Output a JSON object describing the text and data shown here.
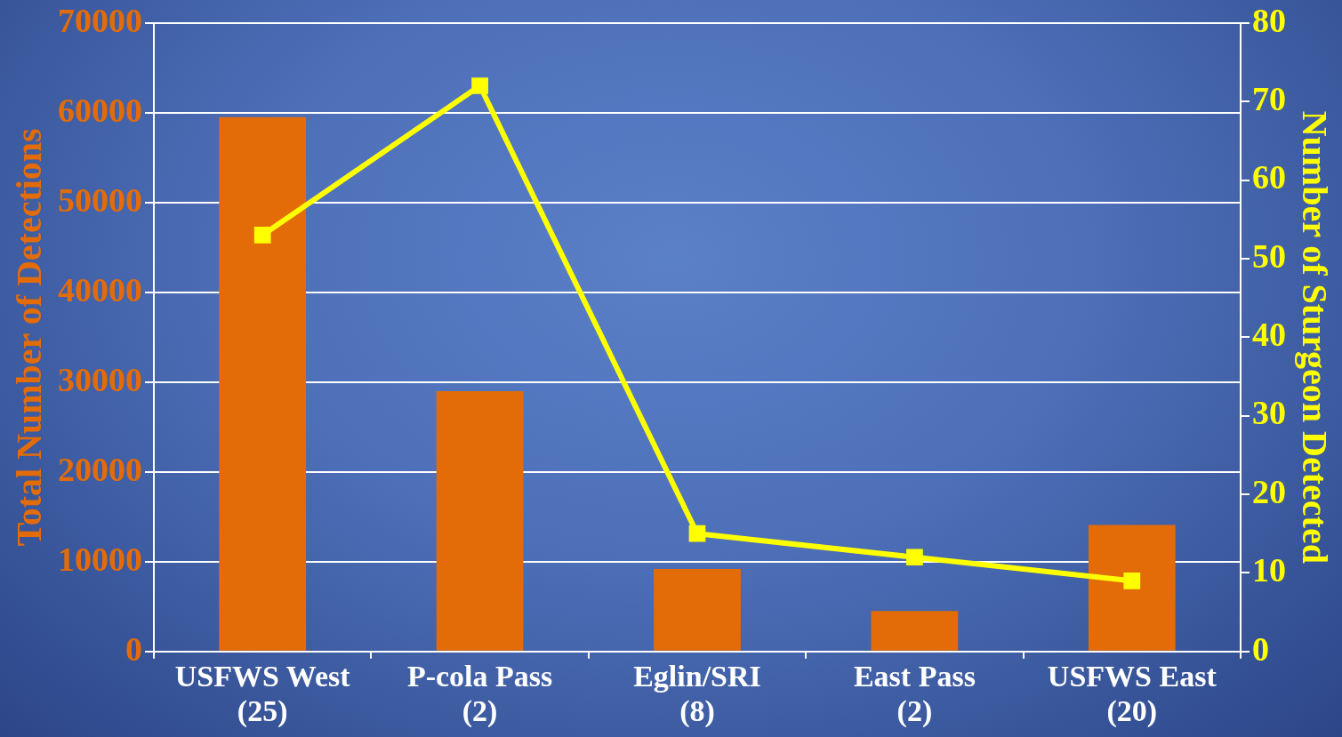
{
  "chart_data": {
    "type": "bar",
    "ylabel": "Total Number of Detections",
    "y2label": "Number of Sturgeon Detected",
    "categories": [
      "USFWS West\n(25)",
      "P-cola Pass\n(2)",
      "Eglin/SRI\n(8)",
      "East Pass\n(2)",
      "USFWS East\n(20)"
    ],
    "series": [
      {
        "color": "#e36c09",
        "values": [
          59500,
          29000,
          9200,
          4500,
          14100
        ]
      },
      {
        "type": "line",
        "axis": "y2",
        "color": "#ffff00",
        "marker": "square",
        "values": [
          53,
          72,
          15,
          12,
          9
        ]
      }
    ],
    "ylim": [
      0,
      70000
    ],
    "yticks": [
      0,
      10000,
      20000,
      30000,
      40000,
      50000,
      60000,
      70000
    ],
    "y2lim": [
      0,
      80
    ],
    "y2ticks": [
      0,
      10,
      20,
      30,
      40,
      50,
      60,
      70,
      80
    ],
    "grid": "y",
    "legend": false
  }
}
